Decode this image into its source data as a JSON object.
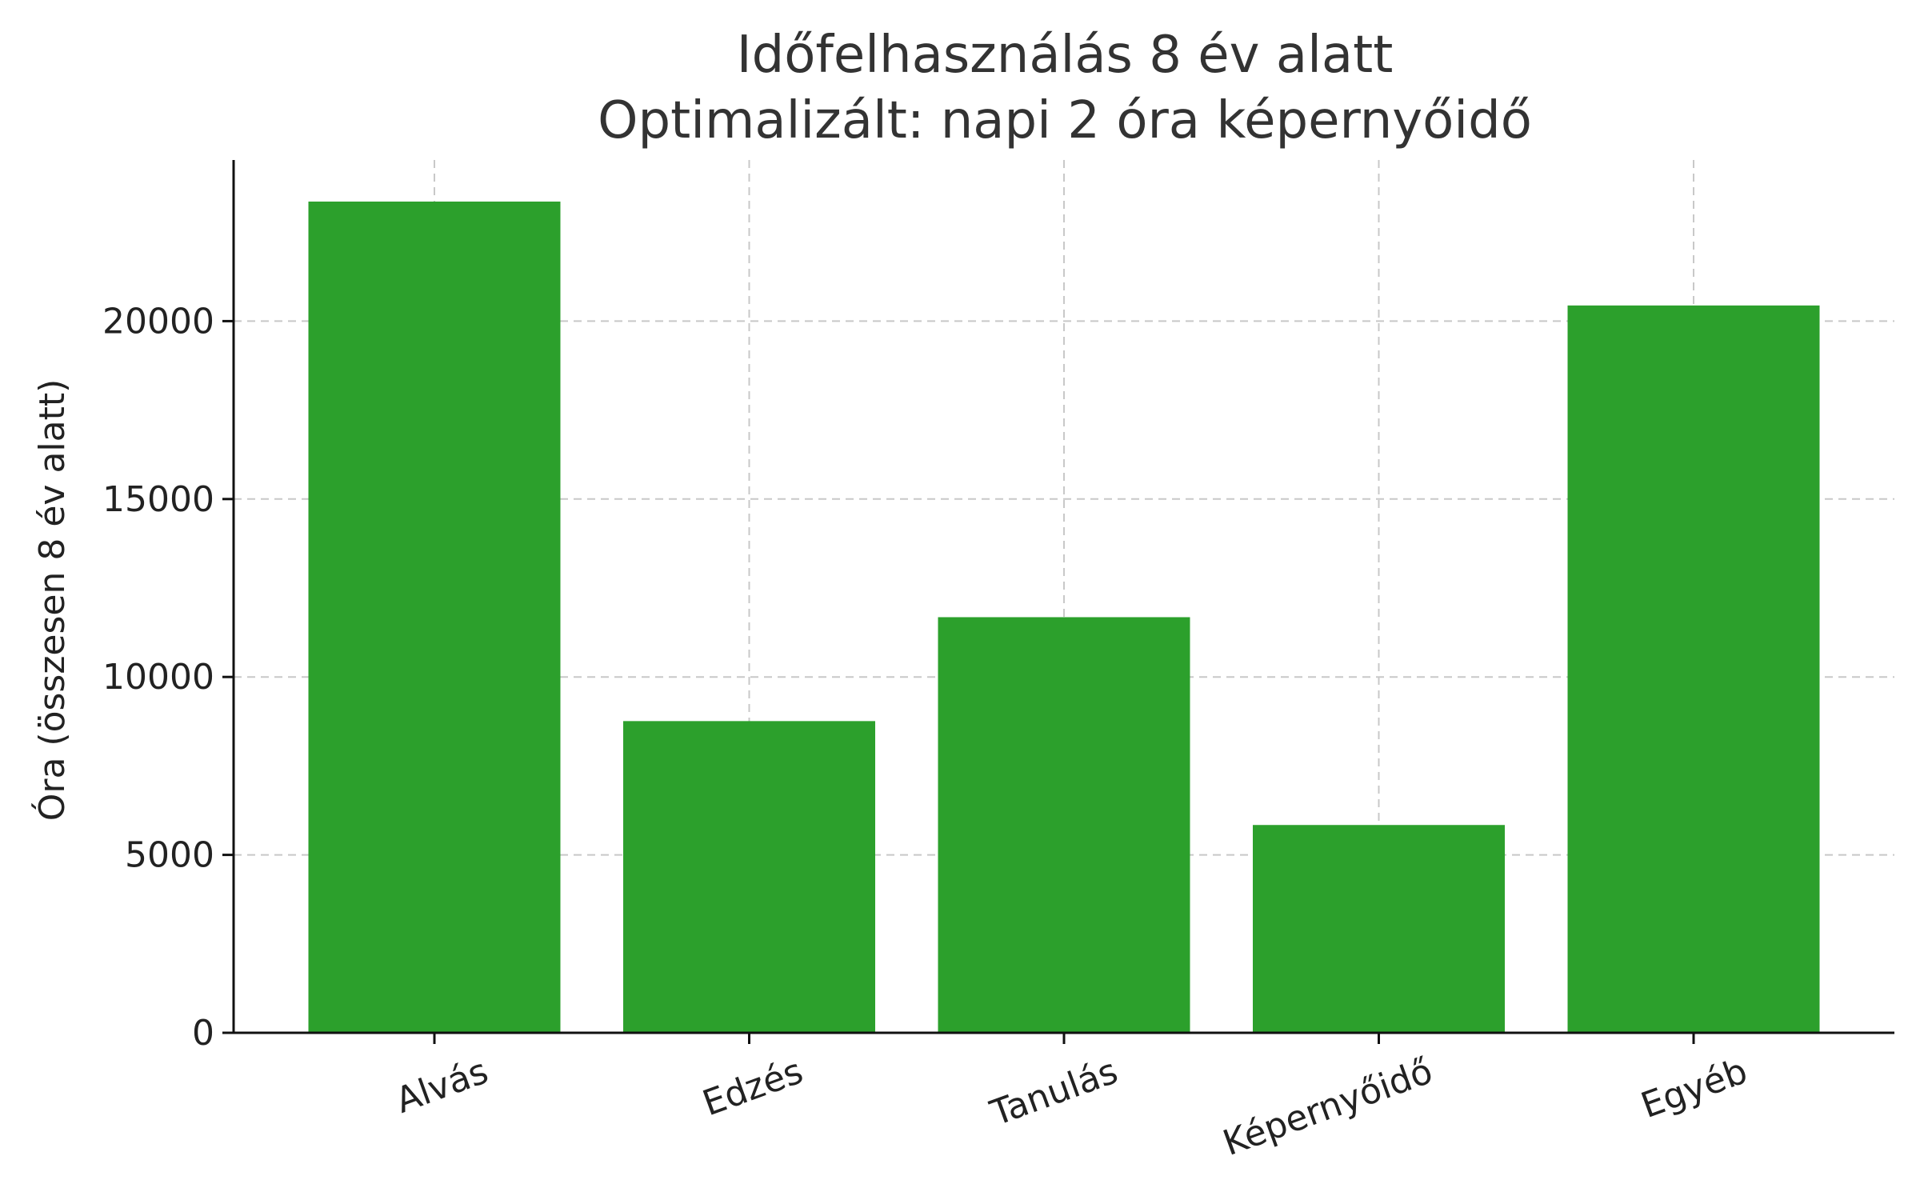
{
  "chart_data": {
    "type": "bar",
    "title": "Időfelhasználás 8 év alatt",
    "subtitle": "Optimalizált: napi 2 óra képernyőidő",
    "xlabel": "",
    "ylabel": "Óra (összesen 8 év alatt)",
    "categories": [
      "Alvás",
      "Edzés",
      "Tanulás",
      "Képernyőidő",
      "Egyéb"
    ],
    "values": [
      23360,
      8760,
      11680,
      5840,
      20440
    ],
    "ylim": [
      0,
      24528
    ],
    "yticks": [
      0,
      5000,
      10000,
      15000,
      20000
    ],
    "ytick_labels": [
      "0",
      "5000",
      "10000",
      "15000",
      "20000"
    ],
    "grid": true,
    "bar_color": "#2ca02c",
    "axis_color": "#111111",
    "grid_color": "#c8c8c8"
  }
}
